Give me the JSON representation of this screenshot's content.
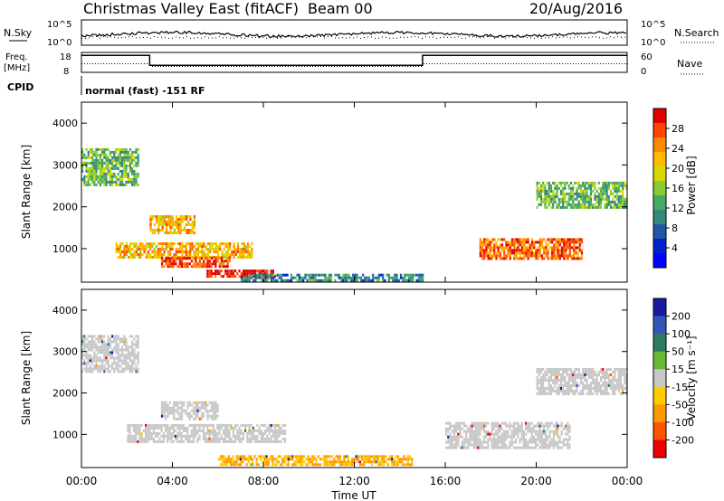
{
  "header": {
    "title": "Christmas Valley East (fitACF)",
    "beam": "Beam 00",
    "date": "20/Aug/2016"
  },
  "nsky": {
    "left_label": "N.Sky",
    "right_label": "N.Search",
    "left_ticks": [
      "10^5",
      "10^0"
    ],
    "right_ticks": [
      "10^5",
      "10^0"
    ]
  },
  "freq": {
    "left_label_1": "Freq.",
    "left_label_2": "[MHz]",
    "right_label": "Nave",
    "left_ticks": [
      "18",
      "8"
    ],
    "right_ticks": [
      "60",
      "0"
    ]
  },
  "cpid": {
    "label": "CPID",
    "text": "normal (fast) -151 RF"
  },
  "power_panel": {
    "ylabel": "Slant Range [km]",
    "colorbar_label": "Power [dB]",
    "colorbar_ticks": [
      "28",
      "24",
      "20",
      "16",
      "12",
      "8",
      "4"
    ],
    "colorbar_colors": [
      "#e00000",
      "#ff4400",
      "#ff8800",
      "#ffbb00",
      "#d8d800",
      "#88cc33",
      "#44aa66",
      "#338877",
      "#2255aa",
      "#0022cc",
      "#0000ff"
    ]
  },
  "velocity_panel": {
    "ylabel": "Slant Range [km]",
    "colorbar_label": "Velocity [m s⁻¹]",
    "colorbar_ticks": [
      "200",
      "100",
      "50",
      "15",
      "-15",
      "-50",
      "-100",
      "-200"
    ],
    "colorbar_colors": [
      "#1a1aa0",
      "#3355bb",
      "#2f7a63",
      "#66bb33",
      "#c8c8c8",
      "#ffcc00",
      "#ff9900",
      "#ff5500",
      "#ee0000"
    ]
  },
  "xaxis": {
    "label": "Time UT",
    "ticks": [
      "00:00",
      "04:00",
      "08:00",
      "12:00",
      "16:00",
      "20:00",
      "00:00"
    ]
  },
  "chart_data": {
    "type": "heatmap",
    "title": "Christmas Valley East (fitACF)",
    "xlabel": "Time UT",
    "ylabel": "Slant Range [km]",
    "xlim": [
      0,
      24
    ],
    "ylim": [
      200,
      4500
    ],
    "y_ticks": [
      1000,
      2000,
      3000,
      4000
    ],
    "frequency_series": {
      "ylim": [
        8,
        18
      ],
      "segments": [
        {
          "x": [
            0.0,
            3.0
          ],
          "y": 16.5
        },
        {
          "x": [
            3.0,
            15.0
          ],
          "y": 11.5
        },
        {
          "x": [
            15.0,
            24.0
          ],
          "y": 16.5
        }
      ]
    },
    "power_regions": [
      {
        "x": [
          3.0,
          5.0
        ],
        "y": [
          1400,
          1800
        ],
        "value": 20
      },
      {
        "x": [
          1.5,
          7.5
        ],
        "y": [
          800,
          1150
        ],
        "value": 20
      },
      {
        "x": [
          3.5,
          6.5
        ],
        "y": [
          550,
          800
        ],
        "value": 26
      },
      {
        "x": [
          5.5,
          8.5
        ],
        "y": [
          350,
          500
        ],
        "value": 28
      },
      {
        "x": [
          17.5,
          22.0
        ],
        "y": [
          750,
          1250
        ],
        "value": 24
      },
      {
        "x": [
          7.0,
          15.0
        ],
        "y": [
          250,
          400
        ],
        "value": 8
      },
      {
        "x": [
          0.0,
          2.5
        ],
        "y": [
          2500,
          3400
        ],
        "value": 12
      },
      {
        "x": [
          20.0,
          24.0
        ],
        "y": [
          2000,
          2600
        ],
        "value": 12
      }
    ],
    "velocity_regions": [
      {
        "x": [
          2.0,
          9.0
        ],
        "y": [
          800,
          1250
        ],
        "value": 0
      },
      {
        "x": [
          3.5,
          6.0
        ],
        "y": [
          1400,
          1800
        ],
        "value": 0
      },
      {
        "x": [
          16.0,
          21.5
        ],
        "y": [
          700,
          1300
        ],
        "value": 0
      },
      {
        "x": [
          6.0,
          14.5
        ],
        "y": [
          250,
          500
        ],
        "value": -50
      },
      {
        "x": [
          0.0,
          2.5
        ],
        "y": [
          2500,
          3400
        ],
        "value": 0
      },
      {
        "x": [
          20.0,
          24.0
        ],
        "y": [
          2000,
          2600
        ],
        "value": 0
      }
    ]
  }
}
